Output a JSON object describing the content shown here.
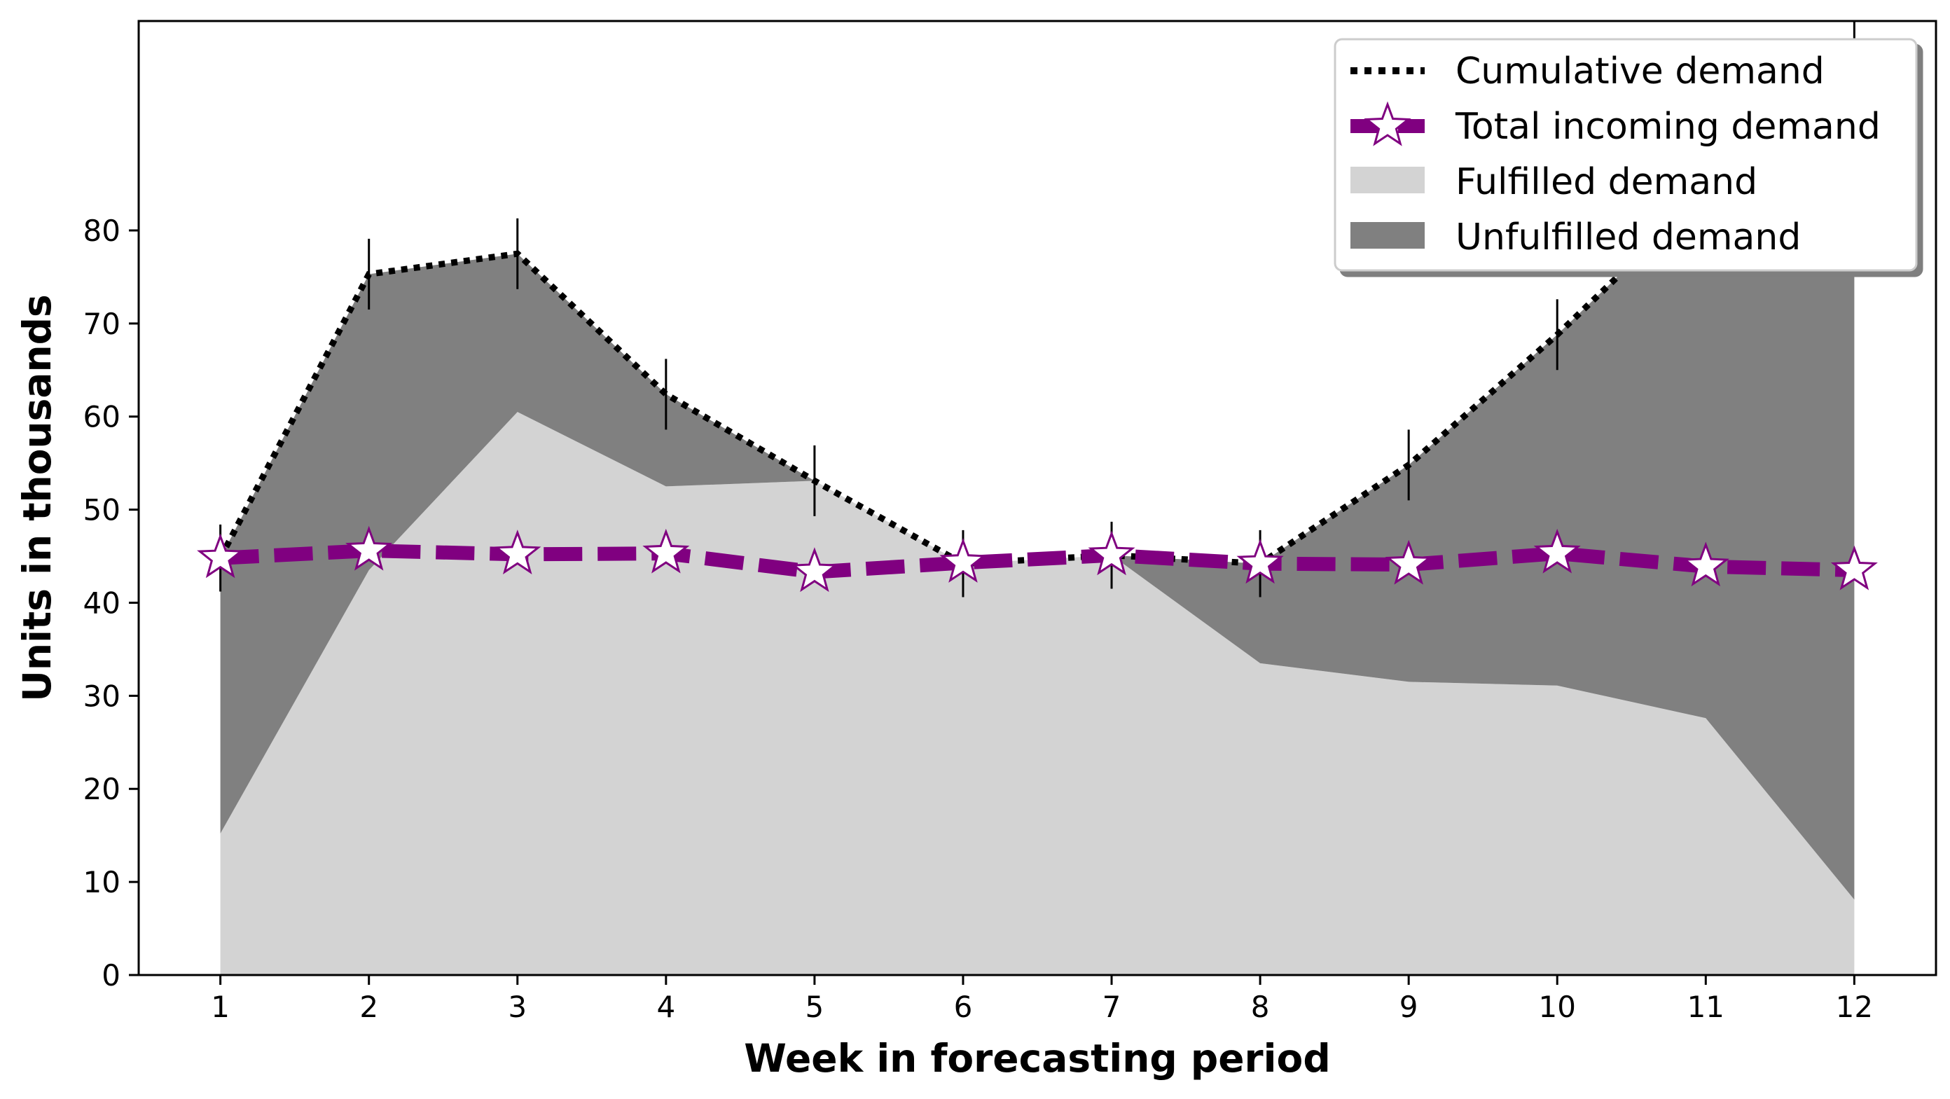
{
  "chart_data": {
    "type": "area",
    "xlabel": "Week in forecasting period",
    "ylabel": "Units in thousands",
    "x": [
      1,
      2,
      3,
      4,
      5,
      6,
      7,
      8,
      9,
      10,
      11,
      12
    ],
    "x_ticks": [
      "1",
      "2",
      "3",
      "4",
      "5",
      "6",
      "7",
      "8",
      "9",
      "10",
      "11",
      "12"
    ],
    "xlim": [
      0.45,
      12.55
    ],
    "ylim": [
      0,
      102.5
    ],
    "y_ticks": [
      0,
      10,
      20,
      30,
      40,
      50,
      60,
      70,
      80
    ],
    "y_tick_labels": [
      "0",
      "10",
      "20",
      "30",
      "40",
      "50",
      "60",
      "70",
      "80"
    ],
    "grid": false,
    "legend_position": "top-right",
    "series": [
      {
        "name": "Cumulative demand",
        "kind": "line",
        "style": "dotted",
        "color": "#000000",
        "values": [
          44.8,
          75.3,
          77.5,
          62.4,
          53.1,
          44.2,
          45.1,
          44.2,
          54.8,
          68.8,
          84.1,
          98.5
        ],
        "error": [
          3.6,
          3.8,
          3.8,
          3.8,
          3.8,
          3.6,
          3.6,
          3.6,
          3.8,
          3.8,
          3.8,
          4.0
        ]
      },
      {
        "name": "Total incoming demand",
        "kind": "line",
        "style": "dashed",
        "marker": "star",
        "color": "#800080",
        "values": [
          44.8,
          45.6,
          45.2,
          45.3,
          43.3,
          44.3,
          45.1,
          44.2,
          44.1,
          45.3,
          43.9,
          43.5
        ]
      },
      {
        "name": "Fulfilled demand",
        "kind": "area",
        "color": "#d3d3d3",
        "values": [
          15.2,
          43.5,
          60.5,
          52.5,
          53.1,
          44.2,
          45.1,
          33.5,
          31.5,
          31.1,
          27.6,
          8.1
        ]
      },
      {
        "name": "Unfulfilled demand",
        "kind": "area",
        "color": "#808080",
        "values": [
          29.6,
          31.8,
          17.0,
          9.9,
          0.0,
          0.0,
          0.0,
          10.7,
          23.3,
          37.7,
          56.5,
          90.4
        ]
      }
    ]
  }
}
